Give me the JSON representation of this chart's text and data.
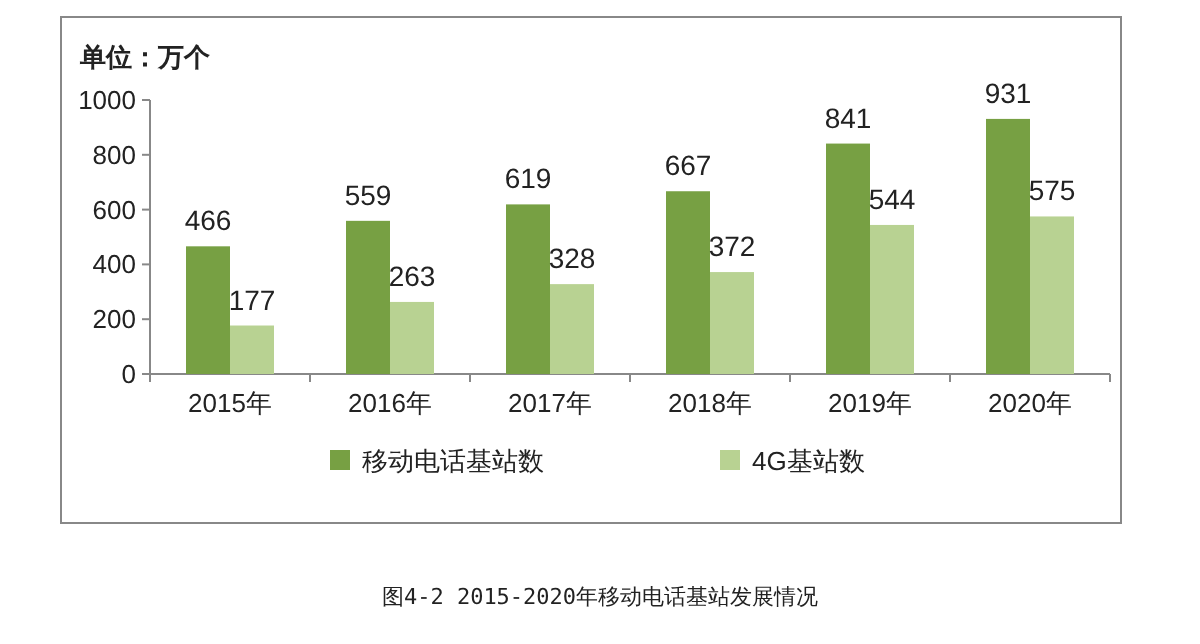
{
  "chart_data": {
    "type": "bar",
    "ylabel": "单位：万个",
    "categories": [
      "2015年",
      "2016年",
      "2017年",
      "2018年",
      "2019年",
      "2020年"
    ],
    "series": [
      {
        "name": "移动电话基站数",
        "color": "#77a043",
        "values": [
          466,
          559,
          619,
          667,
          841,
          931
        ]
      },
      {
        "name": "4G基站数",
        "color": "#b8d292",
        "values": [
          177,
          263,
          328,
          372,
          544,
          575
        ]
      }
    ],
    "ylim": [
      0,
      1000
    ],
    "yticks": [
      0,
      200,
      400,
      600,
      800,
      1000
    ],
    "data_labels": true,
    "legend": "bottom",
    "annotations": [
      "图4-2  2015-2020年移动电话基站发展情况"
    ]
  }
}
